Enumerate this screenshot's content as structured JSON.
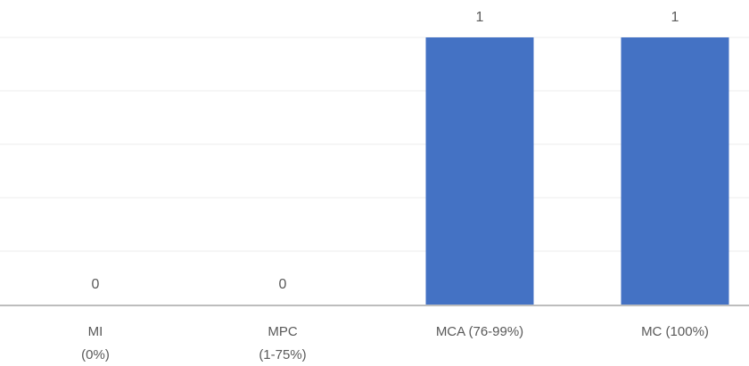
{
  "chart_data": {
    "type": "bar",
    "categories": [
      [
        "MI",
        "(0%)"
      ],
      [
        "MPC",
        "(1-75%)"
      ],
      [
        "MCA (76-99%)"
      ],
      [
        "MC (100%)"
      ]
    ],
    "values": [
      0,
      0,
      1,
      1
    ],
    "data_labels": [
      "0",
      "0",
      "1",
      "1"
    ],
    "title": "",
    "xlabel": "",
    "ylabel": "",
    "ylim": [
      0,
      1
    ],
    "grid": true,
    "bar_color": "#4472c4",
    "gridline_color": "#ececec",
    "axis_color": "#bdbdbd",
    "text_color": "#595959"
  }
}
